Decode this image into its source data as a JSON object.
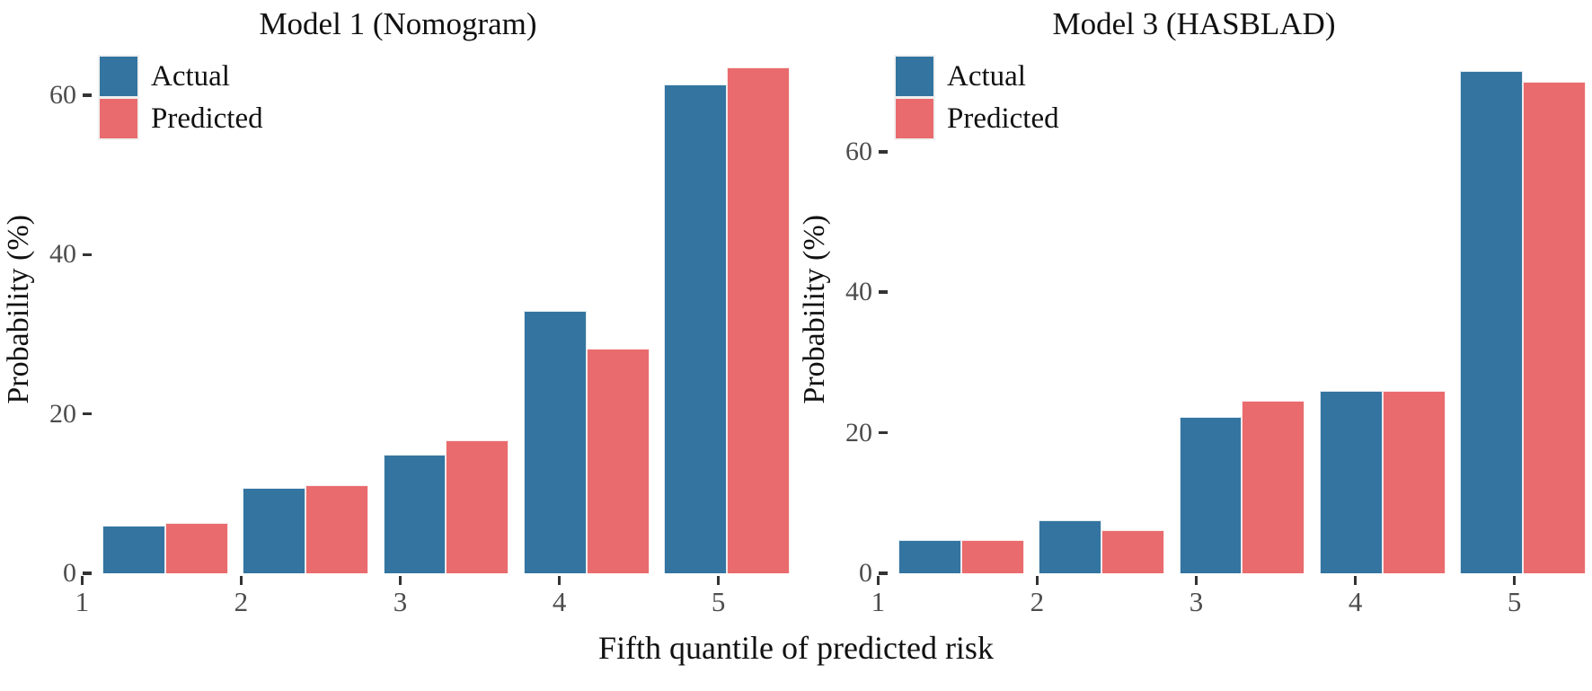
{
  "figure": {
    "x_axis_title": "Fifth quantile of predicted risk",
    "background_color": "#ffffff",
    "tick_label_color": "#4d4d4d",
    "tick_mark_color": "#333333",
    "actual_color": "#3375a0",
    "predicted_color": "#e96b6d",
    "legend_position": "top-left inside plot",
    "grid": "off"
  },
  "chart_data": [
    {
      "type": "bar",
      "title": "Model 1 (Nomogram)",
      "ylabel": "Probability (%)",
      "categories": [
        "1",
        "2",
        "3",
        "4",
        "5"
      ],
      "series": [
        {
          "name": "Actual",
          "color": "#3375a0",
          "values": [
            6.0,
            10.7,
            14.9,
            32.9,
            61.3
          ]
        },
        {
          "name": "Predicted",
          "color": "#e96b6d",
          "values": [
            6.3,
            11.0,
            16.7,
            28.2,
            63.5
          ]
        }
      ],
      "yticks": [
        0,
        20,
        40,
        60
      ],
      "ylim": [
        0,
        66.3
      ],
      "legend_entries": [
        "Actual",
        "Predicted"
      ]
    },
    {
      "type": "bar",
      "title": "Model 3 (HASBLAD)",
      "ylabel": "Probability (%)",
      "categories": [
        "1",
        "2",
        "3",
        "4",
        "5"
      ],
      "series": [
        {
          "name": "Actual",
          "color": "#3375a0",
          "values": [
            4.7,
            7.5,
            22.3,
            25.9,
            71.5
          ]
        },
        {
          "name": "Predicted",
          "color": "#e96b6d",
          "values": [
            4.7,
            6.1,
            24.6,
            26.0,
            69.9
          ]
        }
      ],
      "yticks": [
        0,
        20,
        40,
        60
      ],
      "ylim": [
        0,
        75.2
      ],
      "legend_entries": [
        "Actual",
        "Predicted"
      ]
    }
  ]
}
